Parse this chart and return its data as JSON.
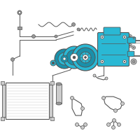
{
  "bg_color": "#ffffff",
  "cyan": "#2ab8d4",
  "cyan_dark": "#1a90aa",
  "line_color": "#555555",
  "gray": "#999999",
  "gray_light": "#cccccc",
  "figsize": [
    2.0,
    2.0
  ],
  "dpi": 100
}
